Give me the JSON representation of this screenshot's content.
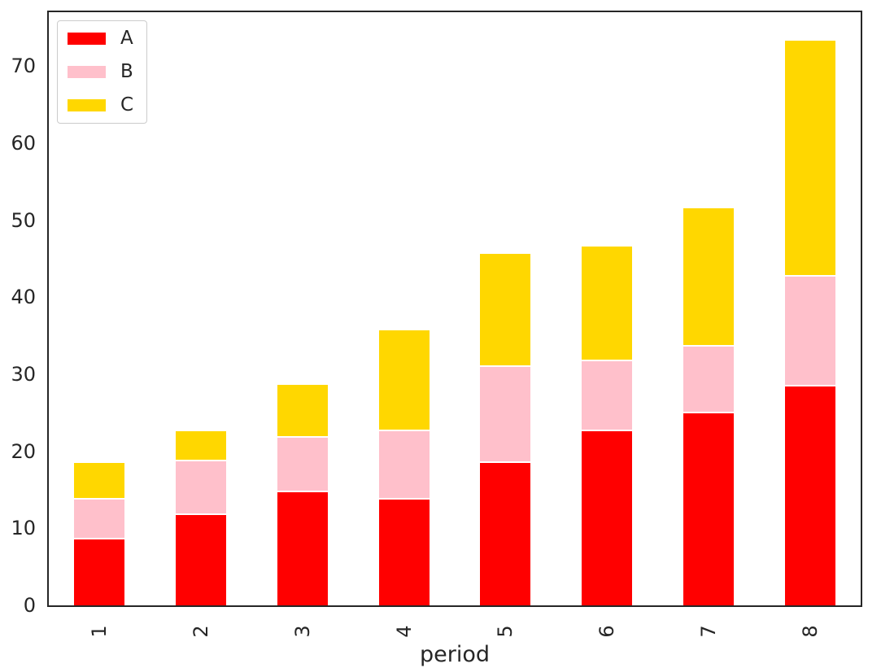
{
  "figure": {
    "background": "#ffffff",
    "text_color": "#262626",
    "spine_color": "#262626",
    "legend_border_color": "#cccccc"
  },
  "chart_data": {
    "type": "bar",
    "stacked": true,
    "orientation": "vertical",
    "title": "",
    "xlabel": "period",
    "ylabel": "",
    "categories": [
      "1",
      "2",
      "3",
      "4",
      "5",
      "6",
      "7",
      "8"
    ],
    "series": [
      {
        "name": "A",
        "color": "#ff0000",
        "values": [
          8.6,
          11.7,
          14.7,
          13.7,
          18.5,
          22.6,
          24.9,
          28.4
        ]
      },
      {
        "name": "B",
        "color": "#ffc0cb",
        "values": [
          5.1,
          7.0,
          7.1,
          8.9,
          12.4,
          9.1,
          8.7,
          14.3
        ]
      },
      {
        "name": "C",
        "color": "#ffd700",
        "values": [
          4.8,
          3.9,
          6.8,
          13.1,
          14.7,
          14.9,
          18.0,
          30.6
        ]
      }
    ],
    "stack_totals": [
      18.5,
      22.6,
      28.6,
      35.7,
      45.6,
      46.6,
      51.6,
      73.3
    ],
    "ylim": [
      0,
      77
    ],
    "yticks": [
      0,
      10,
      20,
      30,
      40,
      50,
      60,
      70
    ],
    "grid": false,
    "legend_position": "upper left",
    "bar_width_fraction": 0.5,
    "xtick_rotation": 90
  }
}
